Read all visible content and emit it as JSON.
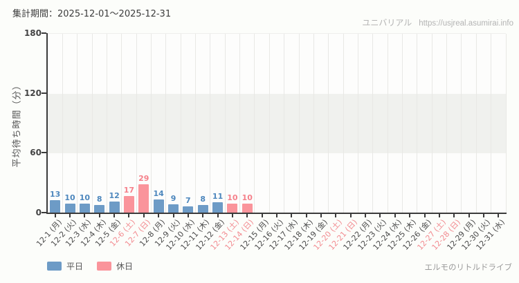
{
  "header": {
    "period_label": "集計期間：2025-12-01～2025-12-31",
    "site_name": "ユニバリアル",
    "site_url": "https://usjreal.asumirai.info"
  },
  "footer": {
    "attraction": "エルモのリトルドライブ"
  },
  "legend": [
    {
      "label": "平日",
      "color": "#6d9bc6"
    },
    {
      "label": "休日",
      "color": "#fa949b"
    }
  ],
  "chart_data": {
    "type": "bar",
    "title": "",
    "xlabel": "",
    "ylabel": "平均待ち時間（分）",
    "ylim": [
      0,
      180
    ],
    "yticks": [
      0,
      60,
      120,
      180
    ],
    "grid": "vertical-day-gridlines, shaded band 60-120",
    "legend_position": "bottom-left",
    "categories": [
      "12-1 (月)",
      "12-2 (火)",
      "12-3 (水)",
      "12-4 (木)",
      "12-5 (金)",
      "12-6 (土)",
      "12-7 (日)",
      "12-8 (月)",
      "12-9 (火)",
      "12-10 (水)",
      "12-11 (木)",
      "12-12 (金)",
      "12-13 (土)",
      "12-14 (日)",
      "12-15 (月)",
      "12-16 (火)",
      "12-17 (水)",
      "12-18 (木)",
      "12-19 (金)",
      "12-20 (土)",
      "12-21 (日)",
      "12-22 (月)",
      "12-23 (火)",
      "12-24 (水)",
      "12-25 (木)",
      "12-26 (金)",
      "12-27 (土)",
      "12-28 (日)",
      "12-29 (月)",
      "12-30 (火)",
      "12-31 (水)"
    ],
    "day_types": [
      "weekday",
      "weekday",
      "weekday",
      "weekday",
      "weekday",
      "holiday",
      "holiday",
      "weekday",
      "weekday",
      "weekday",
      "weekday",
      "weekday",
      "holiday",
      "holiday",
      "weekday",
      "weekday",
      "weekday",
      "weekday",
      "weekday",
      "holiday",
      "holiday",
      "weekday",
      "weekday",
      "weekday",
      "weekday",
      "weekday",
      "holiday",
      "holiday",
      "weekday",
      "weekday",
      "weekday"
    ],
    "values": [
      13,
      10,
      10,
      8,
      12,
      17,
      29,
      14,
      9,
      7,
      8,
      11,
      10,
      10,
      null,
      null,
      null,
      null,
      null,
      null,
      null,
      null,
      null,
      null,
      null,
      null,
      null,
      null,
      null,
      null,
      null
    ],
    "series_colors": {
      "weekday": "#6d9bc6",
      "holiday": "#fa949b"
    },
    "value_label_colors": {
      "weekday": "#4d87bd",
      "holiday": "#f5808a"
    },
    "axis_label_colors": {
      "weekday": "#4a4a4a",
      "holiday": "#f28b90"
    },
    "band_color": "#f0f1ee"
  }
}
